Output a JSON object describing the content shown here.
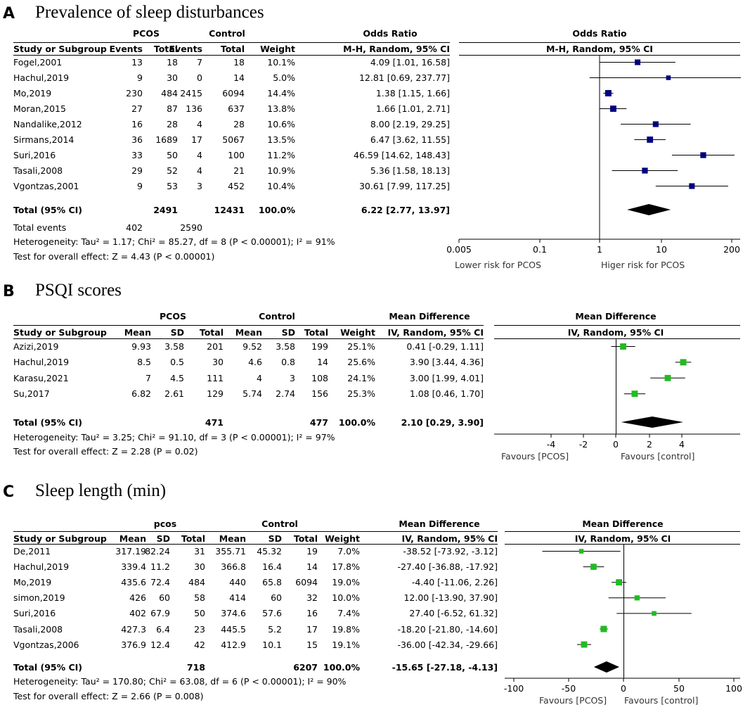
{
  "panels": [
    {
      "letter": "A",
      "title": "Prevalence of sleep disturbances",
      "group1_label": "PCOS",
      "group2_label": "Control",
      "effect_header": "Odds Ratio",
      "method_header": "M-H, Random, 95% CI",
      "columns": [
        "Study or Subgroup",
        "Events",
        "Total",
        "Events",
        "Total",
        "Weight",
        "M-H, Random, 95% CI"
      ],
      "studies": [
        {
          "name": "Fogel,2001",
          "c1": "13",
          "c2": "18",
          "c3": "7",
          "c4": "18",
          "weight": "10.1%",
          "ci_text": "4.09 [1.01, 16.58]"
        },
        {
          "name": "Hachul,2019",
          "c1": "9",
          "c2": "30",
          "c3": "0",
          "c4": "14",
          "weight": "5.0%",
          "ci_text": "12.81 [0.69, 237.77]"
        },
        {
          "name": "Mo,2019",
          "c1": "230",
          "c2": "484",
          "c3": "2415",
          "c4": "6094",
          "weight": "14.4%",
          "ci_text": "1.38 [1.15, 1.66]"
        },
        {
          "name": "Moran,2015",
          "c1": "27",
          "c2": "87",
          "c3": "136",
          "c4": "637",
          "weight": "13.8%",
          "ci_text": "1.66 [1.01, 2.71]"
        },
        {
          "name": "Nandalike,2012",
          "c1": "16",
          "c2": "28",
          "c3": "4",
          "c4": "28",
          "weight": "10.6%",
          "ci_text": "8.00 [2.19, 29.25]"
        },
        {
          "name": "Sirmans,2014",
          "c1": "36",
          "c2": "1689",
          "c3": "17",
          "c4": "5067",
          "weight": "13.5%",
          "ci_text": "6.47 [3.62, 11.55]"
        },
        {
          "name": "Suri,2016",
          "c1": "33",
          "c2": "50",
          "c3": "4",
          "c4": "100",
          "weight": "11.2%",
          "ci_text": "46.59 [14.62, 148.43]"
        },
        {
          "name": "Tasali,2008",
          "c1": "29",
          "c2": "52",
          "c3": "4",
          "c4": "21",
          "weight": "10.9%",
          "ci_text": "5.36 [1.58, 18.13]"
        },
        {
          "name": "Vgontzas,2001",
          "c1": "9",
          "c2": "53",
          "c3": "3",
          "c4": "452",
          "weight": "10.4%",
          "ci_text": "30.61 [7.99, 117.25]"
        }
      ],
      "total": {
        "label": "Total (95% CI)",
        "n1": "2491",
        "n2": "12431",
        "weight": "100.0%",
        "ci_text": "6.22 [2.77, 13.97]"
      },
      "events": {
        "label": "Total events",
        "e1": "402",
        "e2": "2590"
      },
      "heterogeneity": "Heterogeneity: Tau² = 1.17; Chi² = 85.27, df = 8 (P < 0.00001); I² = 91%",
      "overall": "Test for overall effect: Z = 4.43 (P < 0.00001)",
      "axis_ticks": [
        "0.005",
        "0.1",
        "1",
        "10",
        "200"
      ],
      "favours_left": "Lower risk for PCOS",
      "favours_right": "Higer risk for PCOS"
    },
    {
      "letter": "B",
      "title": "PSQI scores",
      "group1_label": "PCOS",
      "group2_label": "Control",
      "effect_header": "Mean Difference",
      "method_header": "IV, Random, 95% CI",
      "columns": [
        "Study or Subgroup",
        "Mean",
        "SD",
        "Total",
        "Mean",
        "SD",
        "Total",
        "Weight",
        "IV, Random, 95% CI"
      ],
      "studies": [
        {
          "name": "Azizi,2019",
          "m1": "9.93",
          "s1": "3.58",
          "n1": "201",
          "m2": "9.52",
          "s2": "3.58",
          "n2": "199",
          "weight": "25.1%",
          "ci_text": "0.41 [-0.29, 1.11]"
        },
        {
          "name": "Hachul,2019",
          "m1": "8.5",
          "s1": "0.5",
          "n1": "30",
          "m2": "4.6",
          "s2": "0.8",
          "n2": "14",
          "weight": "25.6%",
          "ci_text": "3.90 [3.44, 4.36]"
        },
        {
          "name": "Karasu,2021",
          "m1": "7",
          "s1": "4.5",
          "n1": "111",
          "m2": "4",
          "s2": "3",
          "n2": "108",
          "weight": "24.1%",
          "ci_text": "3.00 [1.99, 4.01]"
        },
        {
          "name": "Su,2017",
          "m1": "6.82",
          "s1": "2.61",
          "n1": "129",
          "m2": "5.74",
          "s2": "2.74",
          "n2": "156",
          "weight": "25.3%",
          "ci_text": "1.08 [0.46, 1.70]"
        }
      ],
      "total": {
        "label": "Total (95% CI)",
        "n1": "471",
        "n2": "477",
        "weight": "100.0%",
        "ci_text": "2.10 [0.29, 3.90]"
      },
      "heterogeneity": "Heterogeneity: Tau² = 3.25; Chi² = 91.10, df = 3 (P < 0.00001); I² = 97%",
      "overall": "Test for overall effect: Z = 2.28 (P = 0.02)",
      "axis_ticks": [
        "-4",
        "-2",
        "0",
        "2",
        "4"
      ],
      "favours_left": "Favours [PCOS]",
      "favours_right": "Favours [control]"
    },
    {
      "letter": "C",
      "title": "Sleep length (min)",
      "group1_label": "pcos",
      "group2_label": "Control",
      "effect_header": "Mean Difference",
      "method_header": "IV, Random, 95% CI",
      "columns": [
        "Study or Subgroup",
        "Mean",
        "SD",
        "Total",
        "Mean",
        "SD",
        "Total",
        "Weight",
        "IV, Random, 95% CI"
      ],
      "studies": [
        {
          "name": "De,2011",
          "m1": "317.19",
          "s1": "82.24",
          "n1": "31",
          "m2": "355.71",
          "s2": "45.32",
          "n2": "19",
          "weight": "7.0%",
          "ci_text": "-38.52 [-73.92, -3.12]"
        },
        {
          "name": "Hachul,2019",
          "m1": "339.4",
          "s1": "11.2",
          "n1": "30",
          "m2": "366.8",
          "s2": "16.4",
          "n2": "14",
          "weight": "17.8%",
          "ci_text": "-27.40 [-36.88, -17.92]"
        },
        {
          "name": "Mo,2019",
          "m1": "435.6",
          "s1": "72.4",
          "n1": "484",
          "m2": "440",
          "s2": "65.8",
          "n2": "6094",
          "weight": "19.0%",
          "ci_text": "-4.40 [-11.06, 2.26]"
        },
        {
          "name": "simon,2019",
          "m1": "426",
          "s1": "60",
          "n1": "58",
          "m2": "414",
          "s2": "60",
          "n2": "32",
          "weight": "10.0%",
          "ci_text": "12.00 [-13.90, 37.90]"
        },
        {
          "name": "Suri,2016",
          "m1": "402",
          "s1": "67.9",
          "n1": "50",
          "m2": "374.6",
          "s2": "57.6",
          "n2": "16",
          "weight": "7.4%",
          "ci_text": "27.40 [-6.52, 61.32]"
        },
        {
          "name": "Tasali,2008",
          "m1": "427.3",
          "s1": "6.4",
          "n1": "23",
          "m2": "445.5",
          "s2": "5.2",
          "n2": "17",
          "weight": "19.8%",
          "ci_text": "-18.20 [-21.80, -14.60]"
        },
        {
          "name": "Vgontzas,2006",
          "m1": "376.9",
          "s1": "12.4",
          "n1": "42",
          "m2": "412.9",
          "s2": "10.1",
          "n2": "15",
          "weight": "19.1%",
          "ci_text": "-36.00 [-42.34, -29.66]"
        }
      ],
      "total": {
        "label": "Total (95% CI)",
        "n1": "718",
        "n2": "6207",
        "weight": "100.0%",
        "ci_text": "-15.65 [-27.18, -4.13]"
      },
      "heterogeneity": "Heterogeneity: Tau² = 170.80; Chi² = 63.08, df = 6 (P < 0.00001); I² = 90%",
      "overall": "Test for overall effect: Z = 2.66 (P = 0.008)",
      "axis_ticks": [
        "-100",
        "-50",
        "0",
        "50",
        "100"
      ],
      "favours_left": "Favours [PCOS]",
      "favours_right": "Favours [control]"
    }
  ],
  "chart_data": [
    {
      "type": "scatter",
      "subtype": "forest",
      "title": "Prevalence of sleep disturbances",
      "scale": "log",
      "xlim": [
        0.005,
        200
      ],
      "null_value": 1,
      "marker_color": "#00007f",
      "points": [
        {
          "label": "Fogel,2001",
          "est": 4.09,
          "lo": 1.01,
          "hi": 16.58,
          "weight": 10.1
        },
        {
          "label": "Hachul,2019",
          "est": 12.81,
          "lo": 0.69,
          "hi": 237.77,
          "weight": 5.0
        },
        {
          "label": "Mo,2019",
          "est": 1.38,
          "lo": 1.15,
          "hi": 1.66,
          "weight": 14.4
        },
        {
          "label": "Moran,2015",
          "est": 1.66,
          "lo": 1.01,
          "hi": 2.71,
          "weight": 13.8
        },
        {
          "label": "Nandalike,2012",
          "est": 8.0,
          "lo": 2.19,
          "hi": 29.25,
          "weight": 10.6
        },
        {
          "label": "Sirmans,2014",
          "est": 6.47,
          "lo": 3.62,
          "hi": 11.55,
          "weight": 13.5
        },
        {
          "label": "Suri,2016",
          "est": 46.59,
          "lo": 14.62,
          "hi": 148.43,
          "weight": 11.2
        },
        {
          "label": "Tasali,2008",
          "est": 5.36,
          "lo": 1.58,
          "hi": 18.13,
          "weight": 10.9
        },
        {
          "label": "Vgontzas,2001",
          "est": 30.61,
          "lo": 7.99,
          "hi": 117.25,
          "weight": 10.4
        }
      ],
      "pooled": {
        "est": 6.22,
        "lo": 2.77,
        "hi": 13.97
      },
      "ticks": [
        0.005,
        0.1,
        1,
        10,
        200
      ]
    },
    {
      "type": "scatter",
      "subtype": "forest",
      "title": "PSQI scores",
      "scale": "linear",
      "xlim": [
        -4,
        4
      ],
      "null_value": 0,
      "marker_color": "#22bb22",
      "points": [
        {
          "label": "Azizi,2019",
          "est": 0.41,
          "lo": -0.29,
          "hi": 1.11,
          "weight": 25.1
        },
        {
          "label": "Hachul,2019",
          "est": 3.9,
          "lo": 3.44,
          "hi": 4.36,
          "weight": 25.6
        },
        {
          "label": "Karasu,2021",
          "est": 3.0,
          "lo": 1.99,
          "hi": 4.01,
          "weight": 24.1
        },
        {
          "label": "Su,2017",
          "est": 1.08,
          "lo": 0.46,
          "hi": 1.7,
          "weight": 25.3
        }
      ],
      "pooled": {
        "est": 2.1,
        "lo": 0.29,
        "hi": 3.9
      },
      "ticks": [
        -4,
        -2,
        0,
        2,
        4
      ]
    },
    {
      "type": "scatter",
      "subtype": "forest",
      "title": "Sleep length (min)",
      "scale": "linear",
      "xlim": [
        -100,
        100
      ],
      "null_value": 0,
      "marker_color": "#22bb22",
      "points": [
        {
          "label": "De,2011",
          "est": -38.52,
          "lo": -73.92,
          "hi": -3.12,
          "weight": 7.0
        },
        {
          "label": "Hachul,2019",
          "est": -27.4,
          "lo": -36.88,
          "hi": -17.92,
          "weight": 17.8
        },
        {
          "label": "Mo,2019",
          "est": -4.4,
          "lo": -11.06,
          "hi": 2.26,
          "weight": 19.0
        },
        {
          "label": "simon,2019",
          "est": 12.0,
          "lo": -13.9,
          "hi": 37.9,
          "weight": 10.0
        },
        {
          "label": "Suri,2016",
          "est": 27.4,
          "lo": -6.52,
          "hi": 61.32,
          "weight": 7.4
        },
        {
          "label": "Tasali,2008",
          "est": -18.2,
          "lo": -21.8,
          "hi": -14.6,
          "weight": 19.8
        },
        {
          "label": "Vgontzas,2006",
          "est": -36.0,
          "lo": -42.34,
          "hi": -29.66,
          "weight": 19.1
        }
      ],
      "pooled": {
        "est": -15.65,
        "lo": -27.18,
        "hi": -4.13
      },
      "ticks": [
        -100,
        -50,
        0,
        50,
        100
      ]
    }
  ]
}
